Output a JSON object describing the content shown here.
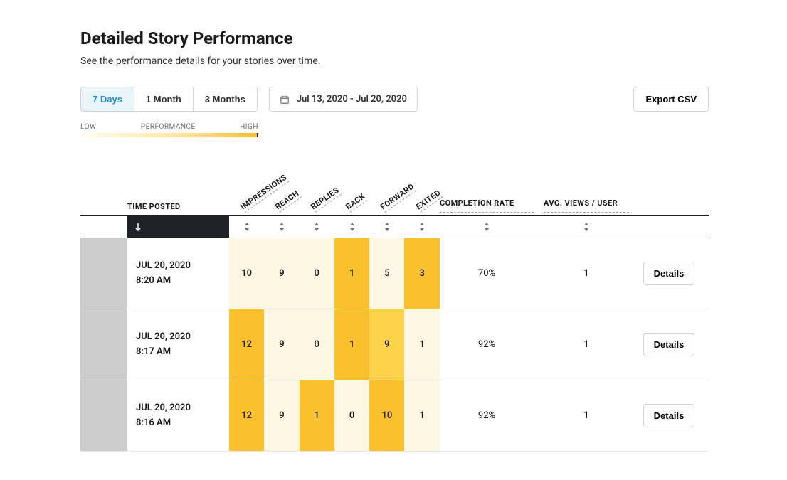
{
  "heading": {
    "title": "Detailed Story Performance",
    "subtitle": "See the performance details for your stories over time."
  },
  "range_tabs": {
    "items": [
      "7 Days",
      "1 Month",
      "3 Months"
    ],
    "active_index": 0
  },
  "date_range": "Jul 13, 2020 - Jul 20, 2020",
  "export_label": "Export CSV",
  "legend": {
    "low": "LOW",
    "mid": "PERFORMANCE",
    "high": "HIGH"
  },
  "heat_colors": {
    "min": "#fffcf2",
    "low": "#fdf6e3",
    "mid": "#fde9a8",
    "high": "#fbc02d"
  },
  "columns": {
    "time": "TIME POSTED",
    "metrics": [
      "IMPRESSIONS",
      "REACH",
      "REPLIES",
      "BACK",
      "FORWARD",
      "EXITED"
    ],
    "rate": "COMPLETION RATE",
    "avg": "AVG. VIEWS / USER"
  },
  "details_label": "Details",
  "rows": [
    {
      "thumb_class": "thumb-1",
      "date": "JUL 20, 2020",
      "time": "8:20 AM",
      "metrics": [
        {
          "v": "10",
          "c": "#fdf6e3"
        },
        {
          "v": "9",
          "c": "#fdf6e3"
        },
        {
          "v": "0",
          "c": "#fdf6e3"
        },
        {
          "v": "1",
          "c": "#fbc02d"
        },
        {
          "v": "5",
          "c": "#fdf6e3"
        },
        {
          "v": "3",
          "c": "#fbc02d"
        }
      ],
      "rate": "70%",
      "avg": "1"
    },
    {
      "thumb_class": "thumb-2",
      "date": "JUL 20, 2020",
      "time": "8:17 AM",
      "metrics": [
        {
          "v": "12",
          "c": "#fbc02d"
        },
        {
          "v": "9",
          "c": "#fdf6e3"
        },
        {
          "v": "0",
          "c": "#fdf6e3"
        },
        {
          "v": "1",
          "c": "#fbc02d"
        },
        {
          "v": "9",
          "c": "#fcd24b"
        },
        {
          "v": "1",
          "c": "#fdf6e3"
        }
      ],
      "rate": "92%",
      "avg": "1"
    },
    {
      "thumb_class": "thumb-3",
      "date": "JUL 20, 2020",
      "time": "8:16 AM",
      "metrics": [
        {
          "v": "12",
          "c": "#fbc02d"
        },
        {
          "v": "9",
          "c": "#fdf6e3"
        },
        {
          "v": "1",
          "c": "#fbc02d"
        },
        {
          "v": "0",
          "c": "#fdf6e3"
        },
        {
          "v": "10",
          "c": "#fbc02d"
        },
        {
          "v": "1",
          "c": "#fdf6e3"
        }
      ],
      "rate": "92%",
      "avg": "1"
    }
  ]
}
